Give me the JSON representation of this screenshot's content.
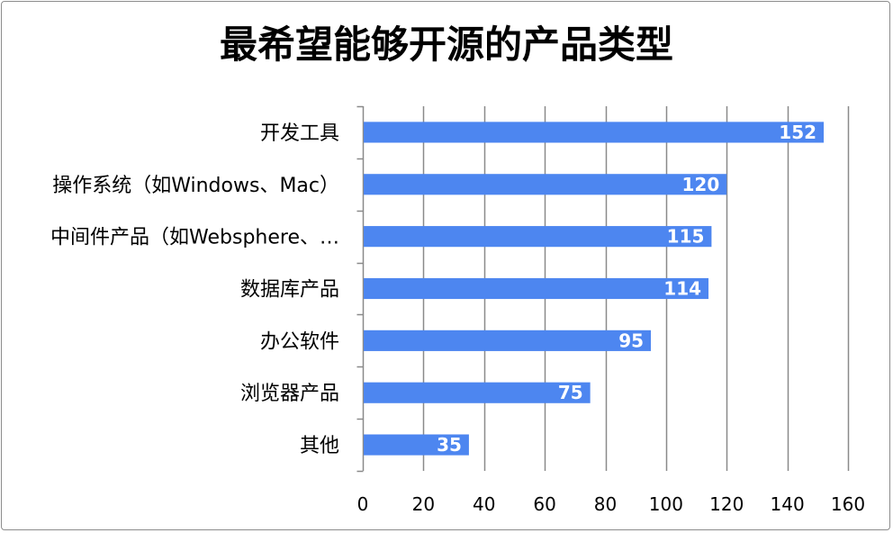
{
  "chart_data": {
    "type": "bar",
    "orientation": "horizontal",
    "title": "最希望能够开源的产品类型",
    "xlabel": "",
    "ylabel": "",
    "categories": [
      "开发工具",
      "操作系统（如Windows、Mac）",
      "中间件产品（如Websphere、…",
      "数据库产品",
      "办公软件",
      "浏览器产品",
      "其他"
    ],
    "values": [
      152,
      120,
      115,
      114,
      95,
      75,
      35
    ],
    "xlim": [
      0,
      160
    ],
    "xticks": [
      0,
      20,
      40,
      60,
      80,
      100,
      120,
      140,
      160
    ],
    "grid": true,
    "legend": "none",
    "data_labels": true,
    "bar_color": "#4d86f0",
    "grid_color": "#8a8a8a"
  }
}
